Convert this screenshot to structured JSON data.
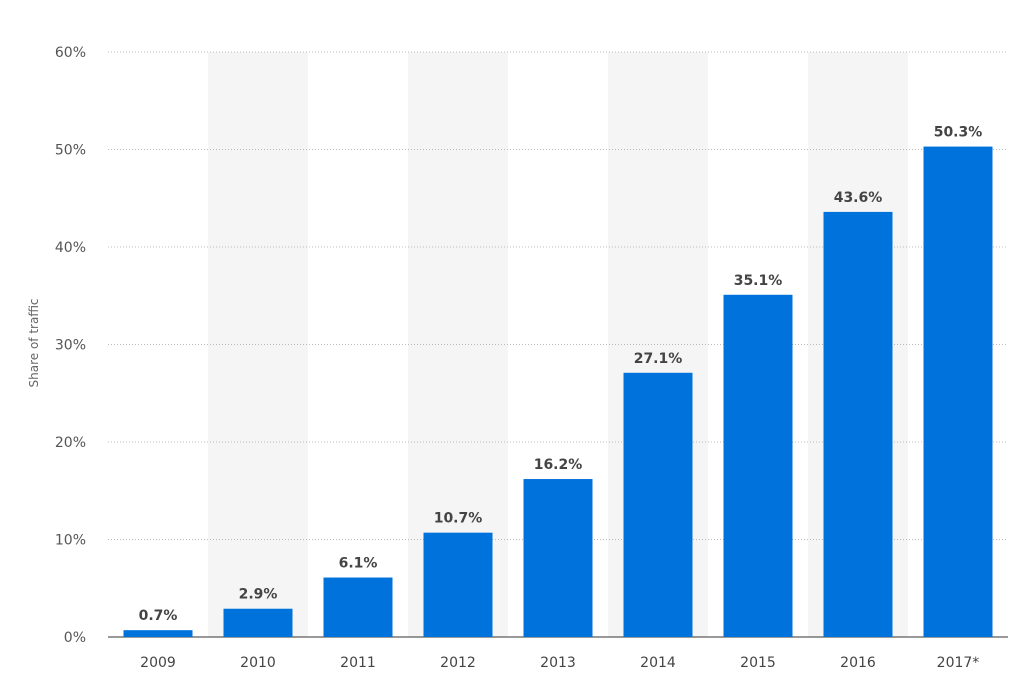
{
  "chart_data": {
    "type": "bar",
    "categories": [
      "2009",
      "2010",
      "2011",
      "2012",
      "2013",
      "2014",
      "2015",
      "2016",
      "2017*"
    ],
    "values": [
      0.7,
      2.9,
      6.1,
      10.7,
      16.2,
      27.1,
      35.1,
      43.6,
      50.3
    ],
    "value_labels": [
      "0.7%",
      "2.9%",
      "6.1%",
      "10.7%",
      "16.2%",
      "27.1%",
      "35.1%",
      "43.6%",
      "50.3%"
    ],
    "title": "",
    "xlabel": "",
    "ylabel": "Share of traffic",
    "ylim": [
      0,
      60
    ],
    "yticks": [
      0,
      10,
      20,
      30,
      40,
      50,
      60
    ],
    "ytick_labels": [
      "0%",
      "10%",
      "20%",
      "30%",
      "40%",
      "50%",
      "60%"
    ],
    "grid": true,
    "legend": "none",
    "bar_color": "#0072dc",
    "band_color": "#f5f5f5"
  }
}
